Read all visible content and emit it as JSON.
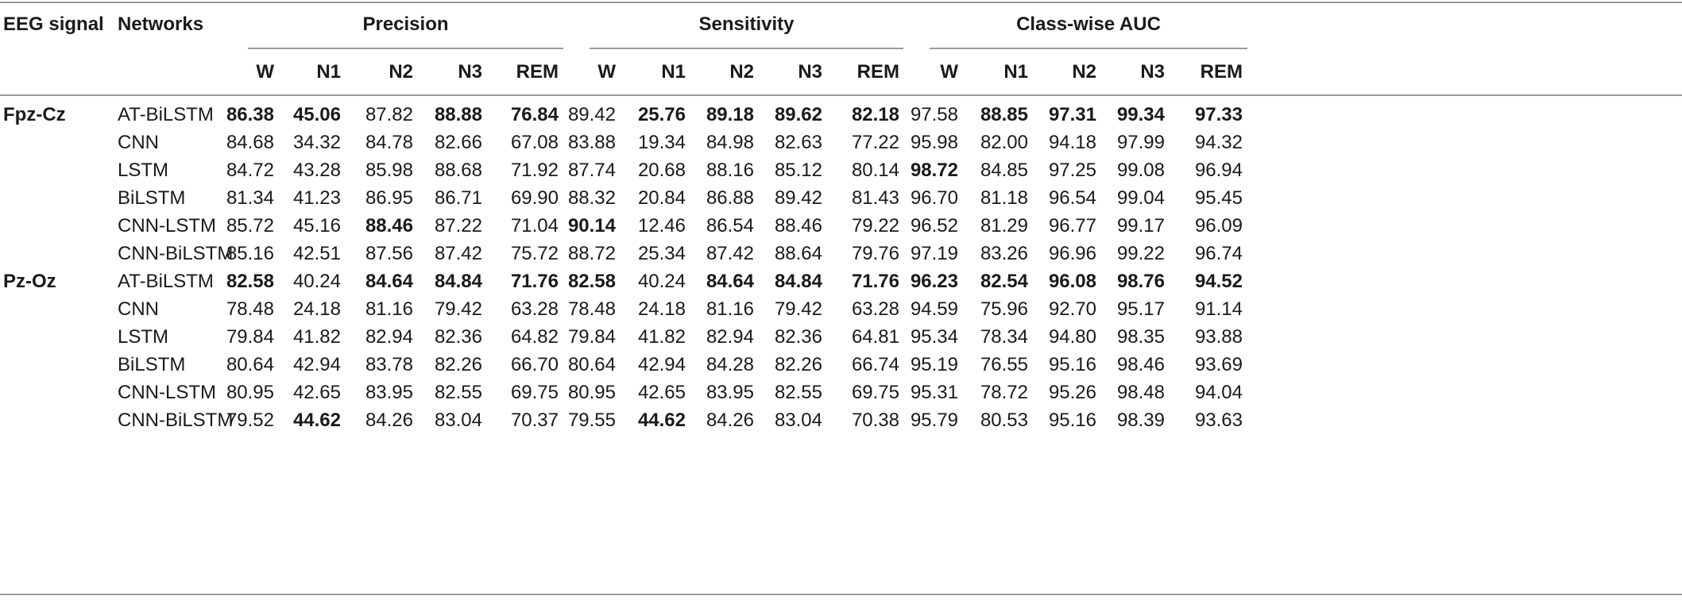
{
  "header": {
    "eeg_signal": "EEG signal",
    "networks": "Networks",
    "groups": [
      "Precision",
      "Sensitivity",
      "Class-wise AUC"
    ],
    "classes": [
      "W",
      "N1",
      "N2",
      "N3",
      "REM"
    ]
  },
  "blocks": [
    {
      "signal": "Fpz-Cz",
      "rows": [
        {
          "network": "AT-BiLSTM",
          "values": [
            "86.38",
            "45.06",
            "87.82",
            "88.88",
            "76.84",
            "89.42",
            "25.76",
            "89.18",
            "89.62",
            "82.18",
            "97.58",
            "88.85",
            "97.31",
            "99.34",
            "97.33"
          ],
          "bold": [
            0,
            1,
            3,
            4,
            6,
            7,
            8,
            9,
            11,
            12,
            13,
            14
          ]
        },
        {
          "network": "CNN",
          "values": [
            "84.68",
            "34.32",
            "84.78",
            "82.66",
            "67.08",
            "83.88",
            "19.34",
            "84.98",
            "82.63",
            "77.22",
            "95.98",
            "82.00",
            "94.18",
            "97.99",
            "94.32"
          ],
          "bold": []
        },
        {
          "network": "LSTM",
          "values": [
            "84.72",
            "43.28",
            "85.98",
            "88.68",
            "71.92",
            "87.74",
            "20.68",
            "88.16",
            "85.12",
            "80.14",
            "98.72",
            "84.85",
            "97.25",
            "99.08",
            "96.94"
          ],
          "bold": [
            10
          ]
        },
        {
          "network": "BiLSTM",
          "values": [
            "81.34",
            "41.23",
            "86.95",
            "86.71",
            "69.90",
            "88.32",
            "20.84",
            "86.88",
            "89.42",
            "81.43",
            "96.70",
            "81.18",
            "96.54",
            "99.04",
            "95.45"
          ],
          "bold": []
        },
        {
          "network": "CNN-LSTM",
          "values": [
            "85.72",
            "45.16",
            "88.46",
            "87.22",
            "71.04",
            "90.14",
            "12.46",
            "86.54",
            "88.46",
            "79.22",
            "96.52",
            "81.29",
            "96.77",
            "99.17",
            "96.09"
          ],
          "bold": [
            2,
            5
          ]
        },
        {
          "network": "CNN-BiLSTM",
          "values": [
            "85.16",
            "42.51",
            "87.56",
            "87.42",
            "75.72",
            "88.72",
            "25.34",
            "87.42",
            "88.64",
            "79.76",
            "97.19",
            "83.26",
            "96.96",
            "99.22",
            "96.74"
          ],
          "bold": []
        }
      ]
    },
    {
      "signal": "Pz-Oz",
      "rows": [
        {
          "network": "AT-BiLSTM",
          "values": [
            "82.58",
            "40.24",
            "84.64",
            "84.84",
            "71.76",
            "82.58",
            "40.24",
            "84.64",
            "84.84",
            "71.76",
            "96.23",
            "82.54",
            "96.08",
            "98.76",
            "94.52"
          ],
          "bold": [
            0,
            2,
            3,
            4,
            5,
            7,
            8,
            9,
            10,
            11,
            12,
            13,
            14
          ]
        },
        {
          "network": "CNN",
          "values": [
            "78.48",
            "24.18",
            "81.16",
            "79.42",
            "63.28",
            "78.48",
            "24.18",
            "81.16",
            "79.42",
            "63.28",
            "94.59",
            "75.96",
            "92.70",
            "95.17",
            "91.14"
          ],
          "bold": []
        },
        {
          "network": "LSTM",
          "values": [
            "79.84",
            "41.82",
            "82.94",
            "82.36",
            "64.82",
            "79.84",
            "41.82",
            "82.94",
            "82.36",
            "64.81",
            "95.34",
            "78.34",
            "94.80",
            "98.35",
            "93.88"
          ],
          "bold": []
        },
        {
          "network": "BiLSTM",
          "values": [
            "80.64",
            "42.94",
            "83.78",
            "82.26",
            "66.70",
            "80.64",
            "42.94",
            "84.28",
            "82.26",
            "66.74",
            "95.19",
            "76.55",
            "95.16",
            "98.46",
            "93.69"
          ],
          "bold": []
        },
        {
          "network": "CNN-LSTM",
          "values": [
            "80.95",
            "42.65",
            "83.95",
            "82.55",
            "69.75",
            "80.95",
            "42.65",
            "83.95",
            "82.55",
            "69.75",
            "95.31",
            "78.72",
            "95.26",
            "98.48",
            "94.04"
          ],
          "bold": []
        },
        {
          "network": "CNN-BiLSTM",
          "values": [
            "79.52",
            "44.62",
            "84.26",
            "83.04",
            "70.37",
            "79.55",
            "44.62",
            "84.26",
            "83.04",
            "70.38",
            "95.79",
            "80.53",
            "95.16",
            "98.39",
            "93.63"
          ],
          "bold": [
            1,
            6
          ]
        }
      ]
    }
  ]
}
